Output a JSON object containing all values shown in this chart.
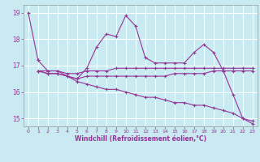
{
  "background_color": "#c8eaf0",
  "grid_color": "#ffffff",
  "line_color": "#993399",
  "xlabel": "Windchill (Refroidissement éolien,°C)",
  "xlim": [
    -0.5,
    23.5
  ],
  "ylim": [
    14.7,
    19.3
  ],
  "yticks": [
    15,
    16,
    17,
    18,
    19
  ],
  "xticks": [
    0,
    1,
    2,
    3,
    4,
    5,
    6,
    7,
    8,
    9,
    10,
    11,
    12,
    13,
    14,
    15,
    16,
    17,
    18,
    19,
    20,
    21,
    22,
    23
  ],
  "series": [
    {
      "x": [
        0,
        1
      ],
      "y": [
        19.0,
        17.2
      ]
    },
    {
      "x": [
        1,
        2,
        3,
        4,
        5,
        6,
        7,
        8,
        9,
        10,
        11,
        12,
        13,
        14,
        15,
        16,
        17,
        18,
        19,
        20,
        21,
        22,
        23
      ],
      "y": [
        17.2,
        16.8,
        16.8,
        16.6,
        16.5,
        16.9,
        17.7,
        18.2,
        18.1,
        18.9,
        18.5,
        17.3,
        17.1,
        17.1,
        17.1,
        17.1,
        17.5,
        17.8,
        17.5,
        16.8,
        15.9,
        15.0,
        14.8
      ]
    },
    {
      "x": [
        1,
        2,
        3,
        4,
        5,
        6,
        7,
        8,
        9,
        10,
        11,
        12,
        13,
        14,
        15,
        16,
        17,
        18,
        19,
        20,
        21,
        22,
        23
      ],
      "y": [
        16.8,
        16.8,
        16.8,
        16.7,
        16.7,
        16.8,
        16.8,
        16.8,
        16.9,
        16.9,
        16.9,
        16.9,
        16.9,
        16.9,
        16.9,
        16.9,
        16.9,
        16.9,
        16.9,
        16.9,
        16.9,
        16.9,
        16.9
      ]
    },
    {
      "x": [
        1,
        2,
        3,
        4,
        5,
        6,
        7,
        8,
        9,
        10,
        11,
        12,
        13,
        14,
        15,
        16,
        17,
        18,
        19,
        20,
        21,
        22,
        23
      ],
      "y": [
        16.8,
        16.7,
        16.7,
        16.6,
        16.5,
        16.6,
        16.6,
        16.6,
        16.6,
        16.6,
        16.6,
        16.6,
        16.6,
        16.6,
        16.7,
        16.7,
        16.7,
        16.7,
        16.8,
        16.8,
        16.8,
        16.8,
        16.8
      ]
    },
    {
      "x": [
        1,
        2,
        3,
        4,
        5,
        6,
        7,
        8,
        9,
        10,
        11,
        12,
        13,
        14,
        15,
        16,
        17,
        18,
        19,
        20,
        21,
        22,
        23
      ],
      "y": [
        16.8,
        16.7,
        16.7,
        16.6,
        16.4,
        16.3,
        16.2,
        16.1,
        16.1,
        16.0,
        15.9,
        15.8,
        15.8,
        15.7,
        15.6,
        15.6,
        15.5,
        15.5,
        15.4,
        15.3,
        15.2,
        15.0,
        14.9
      ]
    }
  ]
}
